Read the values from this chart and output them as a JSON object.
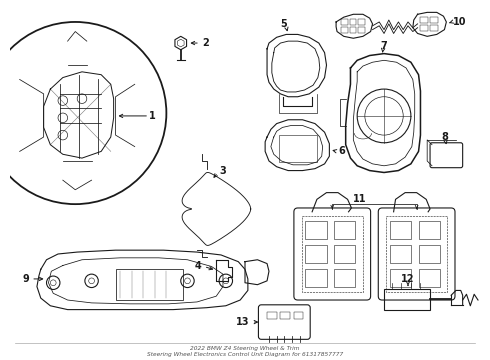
{
  "title": "2022 BMW Z4 Steering Wheel & Trim\nSteering Wheel Electronics Control Unit Diagram for 61317857777",
  "background_color": "#ffffff",
  "line_color": "#1a1a1a",
  "figsize": [
    4.9,
    3.6
  ],
  "dpi": 100
}
